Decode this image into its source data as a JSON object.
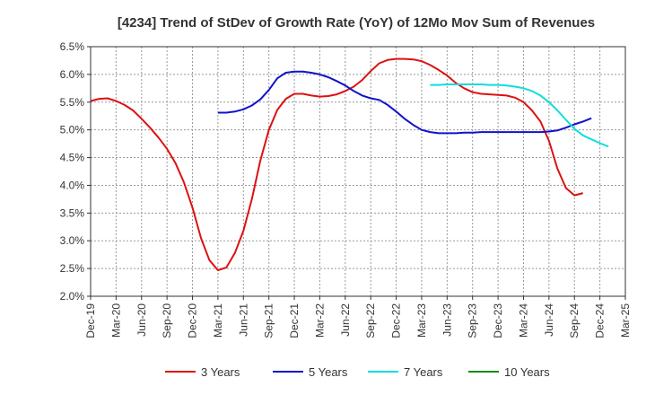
{
  "chart_data": {
    "type": "line",
    "title": "[4234]  Trend of StDev of Growth Rate (YoY) of 12Mo Mov Sum of Revenues",
    "xlabel": "",
    "ylabel": "",
    "ylim": [
      2.0,
      6.5
    ],
    "yticks": [
      "2.0%",
      "2.5%",
      "3.0%",
      "3.5%",
      "4.0%",
      "4.5%",
      "5.0%",
      "5.5%",
      "6.0%",
      "6.5%"
    ],
    "x_tick_labels": [
      "Dec-19",
      "Mar-20",
      "Jun-20",
      "Sep-20",
      "Dec-20",
      "Mar-21",
      "Jun-21",
      "Sep-21",
      "Dec-21",
      "Mar-22",
      "Jun-22",
      "Sep-22",
      "Dec-22",
      "Mar-23",
      "Jun-23",
      "Sep-23",
      "Dec-23",
      "Mar-24",
      "Jun-24",
      "Sep-24",
      "Dec-24",
      "Mar-25"
    ],
    "x_range_months": [
      0,
      63
    ],
    "grid": true,
    "legend_position": "bottom",
    "series": [
      {
        "name": "3 Years",
        "color": "#dd1111",
        "start_month": 0,
        "values": [
          5.52,
          5.56,
          5.57,
          5.52,
          5.45,
          5.35,
          5.2,
          5.04,
          4.86,
          4.66,
          4.4,
          4.05,
          3.6,
          3.05,
          2.65,
          2.47,
          2.52,
          2.78,
          3.18,
          3.75,
          4.45,
          5.0,
          5.36,
          5.56,
          5.65,
          5.65,
          5.62,
          5.6,
          5.61,
          5.64,
          5.7,
          5.78,
          5.9,
          6.06,
          6.2,
          6.26,
          6.28,
          6.28,
          6.27,
          6.24,
          6.17,
          6.08,
          5.98,
          5.85,
          5.75,
          5.68,
          5.65,
          5.64,
          5.63,
          5.62,
          5.58,
          5.5,
          5.35,
          5.15,
          4.8,
          4.3,
          3.95,
          3.82,
          3.86
        ]
      },
      {
        "name": "5 Years",
        "color": "#1111cc",
        "start_month": 15,
        "values": [
          5.31,
          5.31,
          5.33,
          5.37,
          5.44,
          5.55,
          5.72,
          5.93,
          6.03,
          6.05,
          6.05,
          6.03,
          6.0,
          5.95,
          5.88,
          5.8,
          5.7,
          5.62,
          5.57,
          5.54,
          5.45,
          5.33,
          5.2,
          5.09,
          5.0,
          4.96,
          4.94,
          4.94,
          4.94,
          4.95,
          4.95,
          4.96,
          4.96,
          4.96,
          4.96,
          4.96,
          4.96,
          4.96,
          4.96,
          4.97,
          4.99,
          5.04,
          5.1,
          5.15,
          5.21
        ]
      },
      {
        "name": "7 Years",
        "color": "#11dddd",
        "start_month": 40,
        "values": [
          5.81,
          5.81,
          5.82,
          5.82,
          5.82,
          5.82,
          5.82,
          5.81,
          5.81,
          5.8,
          5.78,
          5.75,
          5.7,
          5.62,
          5.5,
          5.35,
          5.18,
          5.02,
          4.9,
          4.83,
          4.76,
          4.7
        ]
      },
      {
        "name": "10 Years",
        "color": "#118811",
        "start_month": 0,
        "values": []
      }
    ]
  }
}
